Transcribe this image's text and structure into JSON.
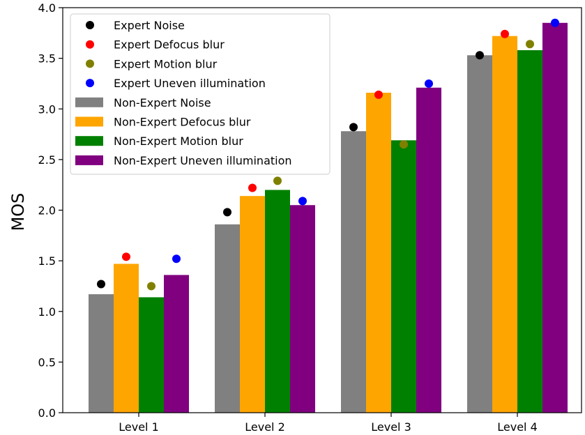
{
  "chart_data": {
    "type": "bar",
    "categories": [
      "Level 1",
      "Level 2",
      "Level 3",
      "Level 4"
    ],
    "ylabel": "MOS",
    "xlabel": "",
    "ylim": [
      0,
      4.0
    ],
    "yticks": [
      "0.0",
      "0.5",
      "1.0",
      "1.5",
      "2.0",
      "2.5",
      "3.0",
      "3.5",
      "4.0"
    ],
    "legend_position": "top-left",
    "series": [
      {
        "name": "Non-Expert Noise",
        "kind": "bar",
        "color": "#808080",
        "values": [
          1.17,
          1.86,
          2.78,
          3.53
        ]
      },
      {
        "name": "Non-Expert Defocus blur",
        "kind": "bar",
        "color": "#ffa500",
        "values": [
          1.47,
          2.14,
          3.16,
          3.72
        ]
      },
      {
        "name": "Non-Expert Motion blur",
        "kind": "bar",
        "color": "#008000",
        "values": [
          1.14,
          2.2,
          2.69,
          3.58
        ]
      },
      {
        "name": "Non-Expert Uneven illumination",
        "kind": "bar",
        "color": "#800080",
        "values": [
          1.36,
          2.05,
          3.21,
          3.85
        ]
      }
    ],
    "markers": [
      {
        "name": "Expert Noise",
        "kind": "point",
        "color": "#000000",
        "values": [
          1.27,
          1.98,
          2.82,
          3.53
        ]
      },
      {
        "name": "Expert Defocus blur",
        "kind": "point",
        "color": "#ff0000",
        "values": [
          1.54,
          2.22,
          3.14,
          3.74
        ]
      },
      {
        "name": "Expert Motion blur",
        "kind": "point",
        "color": "#808000",
        "values": [
          1.25,
          2.29,
          2.65,
          3.64
        ]
      },
      {
        "name": "Expert Uneven illumination",
        "kind": "point",
        "color": "#0000ff",
        "values": [
          1.52,
          2.09,
          3.25,
          3.85
        ]
      }
    ],
    "legend_order": [
      "Expert Noise",
      "Expert Defocus blur",
      "Expert Motion blur",
      "Expert Uneven illumination",
      "Non-Expert Noise",
      "Non-Expert Defocus blur",
      "Non-Expert Motion blur",
      "Non-Expert Uneven illumination"
    ]
  }
}
